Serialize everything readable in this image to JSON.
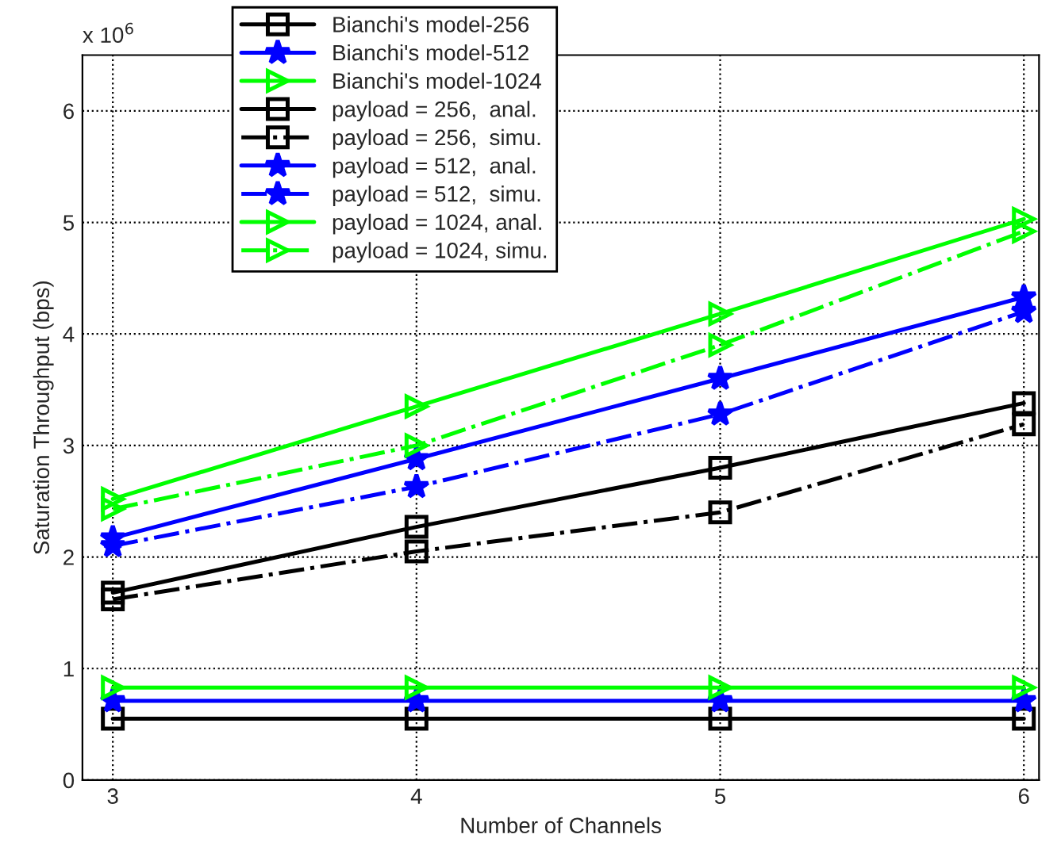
{
  "chart_data": {
    "type": "line",
    "xlabel": "Number of Channels",
    "ylabel": "Saturation Throughput (bps)",
    "annotations": [
      "x 10$^{6}$"
    ],
    "x": [
      3,
      4,
      5,
      6
    ],
    "xlim": [
      2.9,
      6.05
    ],
    "xticks": [
      3,
      4,
      5,
      6
    ],
    "ylim": [
      0,
      6.5
    ],
    "yticks": [
      0,
      1,
      2,
      3,
      4,
      5,
      6
    ],
    "grid": true,
    "legend": "top left",
    "series": [
      {
        "name": "Bianchi's model-256",
        "color": "#000000",
        "marker": "square",
        "line_style": "solid",
        "values": [
          0.55,
          0.55,
          0.55,
          0.55
        ]
      },
      {
        "name": "Bianchi's model-512",
        "color": "#0000ff",
        "marker": "star",
        "line_style": "solid",
        "values": [
          0.71,
          0.71,
          0.71,
          0.71
        ]
      },
      {
        "name": "Bianchi's model-1024",
        "color": "#00ff00",
        "marker": "triangle",
        "line_style": "solid",
        "values": [
          0.83,
          0.83,
          0.83,
          0.83
        ]
      },
      {
        "name": "payload = 256,  anal.",
        "color": "#000000",
        "marker": "square",
        "line_style": "solid",
        "values": [
          1.68,
          2.27,
          2.8,
          3.38
        ]
      },
      {
        "name": "payload = 256,  simu.",
        "color": "#000000",
        "marker": "square",
        "line_style": "dashdot",
        "values": [
          1.62,
          2.05,
          2.4,
          3.19
        ]
      },
      {
        "name": "payload = 512,  anal.",
        "color": "#0000ff",
        "marker": "star",
        "line_style": "solid",
        "values": [
          2.17,
          2.88,
          3.6,
          4.33
        ]
      },
      {
        "name": "payload = 512,  simu.",
        "color": "#0000ff",
        "marker": "star",
        "line_style": "dashdot",
        "values": [
          2.1,
          2.63,
          3.28,
          4.2
        ]
      },
      {
        "name": "payload = 1024, anal.",
        "color": "#00ff00",
        "marker": "triangle",
        "line_style": "solid",
        "values": [
          2.52,
          3.35,
          4.18,
          5.03
        ]
      },
      {
        "name": "payload = 1024, simu.",
        "color": "#00ff00",
        "marker": "triangle",
        "line_style": "dashdot",
        "values": [
          2.43,
          3.0,
          3.9,
          4.92
        ]
      }
    ]
  }
}
